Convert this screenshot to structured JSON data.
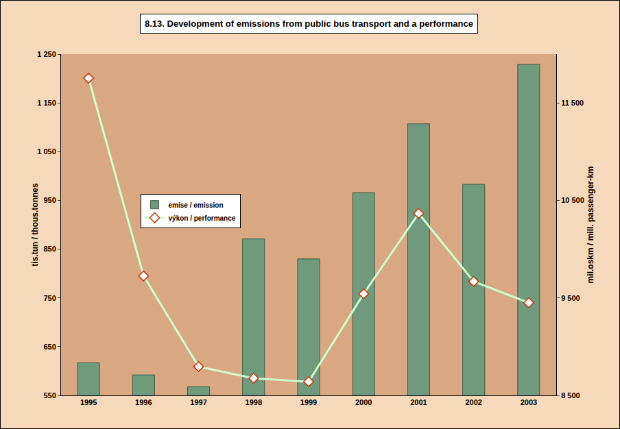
{
  "chart_data": {
    "type": "bar",
    "title": "8.13. Development of emissions from public bus transport and a performance",
    "categories": [
      "1995",
      "1996",
      "1997",
      "1998",
      "1999",
      "2000",
      "2001",
      "2002",
      "2003"
    ],
    "series": [
      {
        "name": "emise / emission",
        "type": "bar",
        "color": "#6f9a7c",
        "values": [
          617,
          592,
          568,
          871,
          830,
          966,
          1107,
          983,
          1229
        ]
      },
      {
        "name": "výkon / performance",
        "type": "line",
        "axis": "y2",
        "color": "#ccffcc",
        "marker": "diamond",
        "values": [
          11754,
          9725,
          8796,
          8676,
          8641,
          9542,
          10366,
          9669,
          9451
        ]
      }
    ],
    "ylabel": "tis.tun / thous.tonnes",
    "y2label": "mil.oskm / mill. passenger-km",
    "ylim": [
      550,
      1250
    ],
    "yticks": [
      550,
      650,
      750,
      850,
      950,
      {
        "value": 1050,
        "label": "1 050"
      },
      {
        "value": 1150,
        "label": "1 150"
      },
      {
        "value": 1250,
        "label": "1 250"
      }
    ],
    "y2lim": [
      8500,
      12000
    ],
    "y2ticks": [
      {
        "value": 8500,
        "label": "8 500"
      },
      {
        "value": 9500,
        "label": "9 500"
      },
      {
        "value": 10500,
        "label": "10 500"
      },
      {
        "value": 11500,
        "label": "11 500"
      }
    ],
    "grid": false,
    "legend": "center left"
  }
}
